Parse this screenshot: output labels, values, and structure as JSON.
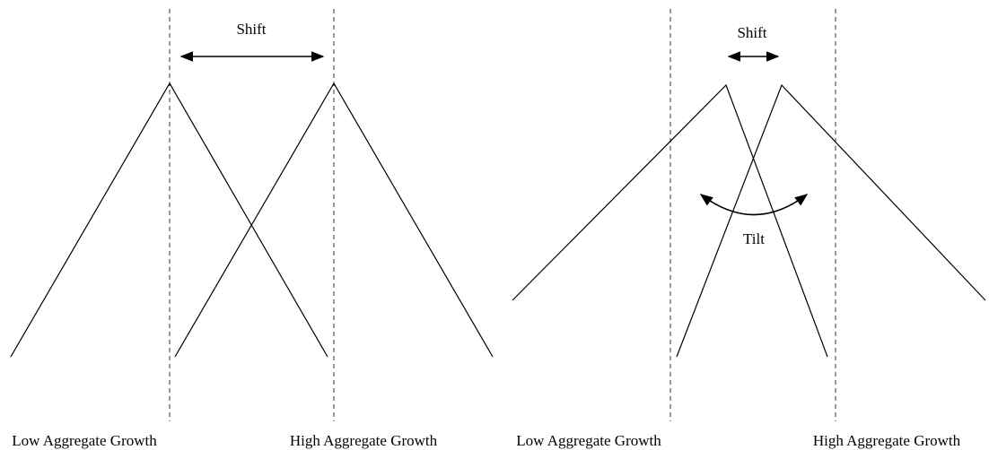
{
  "left_panel": {
    "shift_label": "Shift",
    "axis_labels": [
      "Low Aggregate Growth",
      "High Aggregate Growth"
    ]
  },
  "right_panel": {
    "shift_label": "Shift",
    "tilt_label": "Tilt",
    "axis_labels": [
      "Low Aggregate Growth",
      "High Aggregate Growth"
    ]
  }
}
